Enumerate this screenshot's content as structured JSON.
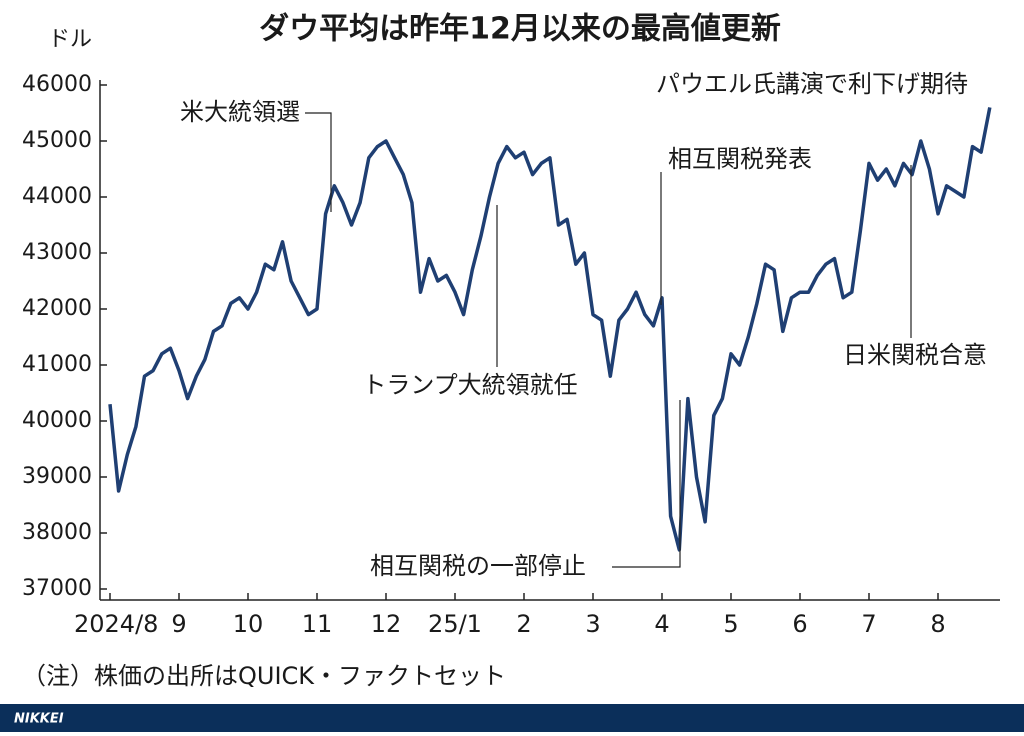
{
  "chart_data": {
    "type": "line",
    "title": "ダウ平均は昨年12月以来の最高値更新",
    "y_unit": "ドル",
    "note": "（注）株価の出所はQUICK・ファクトセット",
    "source": "NIKKEI",
    "categories": [
      "2024/8",
      null,
      null,
      null,
      null,
      null,
      null,
      null,
      "9",
      null,
      null,
      null,
      null,
      null,
      null,
      null,
      "10",
      null,
      null,
      null,
      null,
      null,
      null,
      null,
      "11",
      null,
      null,
      null,
      null,
      null,
      null,
      null,
      "12",
      null,
      null,
      null,
      null,
      null,
      null,
      null,
      "25/1",
      null,
      null,
      null,
      null,
      null,
      null,
      null,
      "2",
      null,
      null,
      null,
      null,
      null,
      null,
      null,
      "3",
      null,
      null,
      null,
      null,
      null,
      null,
      null,
      "4",
      null,
      null,
      null,
      null,
      null,
      null,
      null,
      "5",
      null,
      null,
      null,
      null,
      null,
      null,
      null,
      "6",
      null,
      null,
      null,
      null,
      null,
      null,
      null,
      "7",
      null,
      null,
      null,
      null,
      null,
      null,
      null,
      "8",
      null,
      null,
      null,
      null,
      null,
      null
    ],
    "series": [
      {
        "name": "ダウ平均",
        "color": "#1f3f73",
        "values": [
          40300,
          38750,
          39400,
          39900,
          40800,
          40900,
          41200,
          41300,
          40900,
          40400,
          40800,
          41100,
          41600,
          41700,
          42100,
          42200,
          42000,
          42300,
          42800,
          42700,
          43200,
          42500,
          42200,
          41900,
          42000,
          43700,
          44200,
          43900,
          43500,
          43900,
          44700,
          44900,
          45000,
          44700,
          44400,
          43900,
          42300,
          42900,
          42500,
          42600,
          42300,
          41900,
          42700,
          43300,
          44000,
          44600,
          44900,
          44700,
          44800,
          44400,
          44600,
          44700,
          43500,
          43600,
          42800,
          43000,
          41900,
          41800,
          40800,
          41800,
          42000,
          42300,
          41900,
          41700,
          42200,
          38300,
          37700,
          40400,
          39000,
          38200,
          40100,
          40400,
          41200,
          41000,
          41500,
          42100,
          42800,
          42700,
          41600,
          42200,
          42300,
          42300,
          42600,
          42800,
          42900,
          42200,
          42300,
          43400,
          44600,
          44300,
          44500,
          44200,
          44600,
          44400,
          45000,
          44500,
          43700,
          44200,
          44100,
          44000,
          44900,
          44800,
          45600
        ]
      }
    ],
    "ylim": [
      37000,
      46000
    ],
    "yticks": [
      37000,
      38000,
      39000,
      40000,
      41000,
      42000,
      43000,
      44000,
      45000,
      46000
    ],
    "annotations": [
      {
        "text": "米大統領選",
        "x": 25
      },
      {
        "text": "トランプ大統領就任",
        "x": 44
      },
      {
        "text": "相互関税発表",
        "x": 64
      },
      {
        "text": "相互関税の一部停止",
        "x": 66
      },
      {
        "text": "日米関税合意",
        "x": 93
      },
      {
        "text": "パウエル氏講演で利下げ期待",
        "x": 102
      }
    ]
  }
}
